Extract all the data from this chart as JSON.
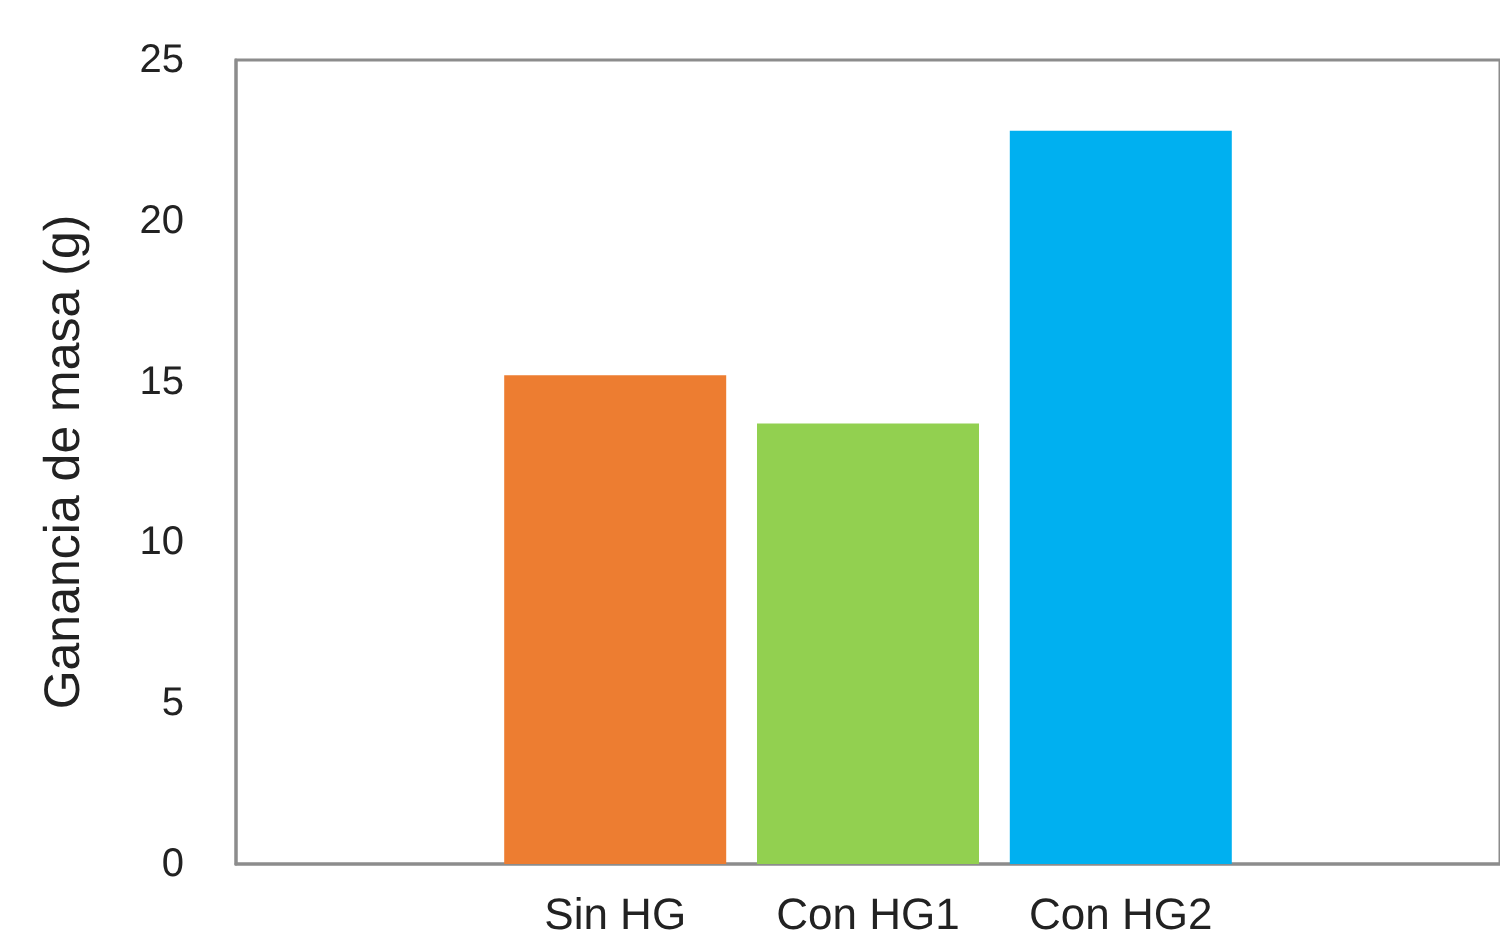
{
  "chart_data": {
    "type": "bar",
    "ylabel": "Ganancia de masa (g)",
    "categories": [
      null,
      "Sin HG",
      "Con HG1",
      "Con HG2",
      null
    ],
    "values": [
      null,
      15.2,
      13.7,
      22.8,
      null
    ],
    "colors": [
      null,
      "#ed7d31",
      "#92d050",
      "#00b0f0",
      null
    ],
    "ylim": [
      0,
      25
    ],
    "yticks": [
      0,
      5,
      10,
      15,
      20,
      25
    ]
  }
}
